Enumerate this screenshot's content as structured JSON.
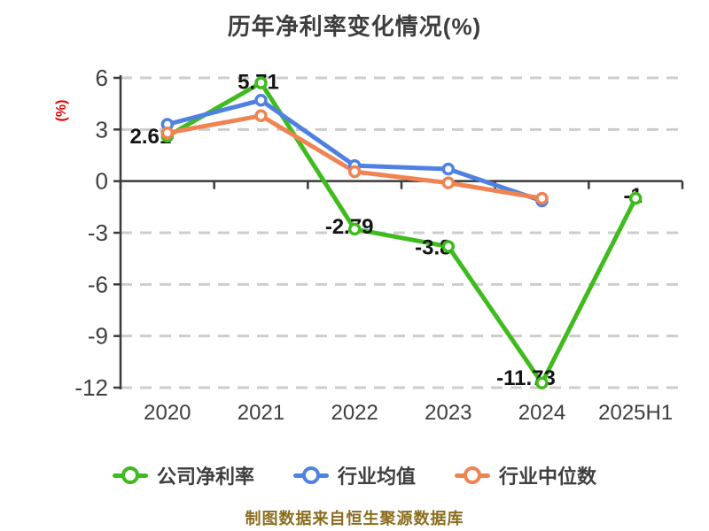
{
  "title": "历年净利率变化情况(%)",
  "y_axis_unit": "(%)",
  "footer": "制图数据来自恒生聚源数据库",
  "chart_data": {
    "type": "line",
    "title": "历年净利率变化情况(%)",
    "xlabel": "",
    "ylabel": "(%)",
    "categories": [
      "2020",
      "2021",
      "2022",
      "2023",
      "2024",
      "2025H1"
    ],
    "ylim": [
      -12,
      6
    ],
    "yticks": [
      6,
      3,
      0,
      -3,
      -6,
      -9,
      -12
    ],
    "grid": "horizontal dashed",
    "legend_position": "bottom",
    "colors": {
      "axis": "#3a3a3a",
      "gridline": "#cdcdcd",
      "tick_text": "#3f3f3f",
      "point_label_text": "#141414",
      "title_text": "#3d3d3d",
      "unit_label_text": "#e60000",
      "footer_text": "#8b6d1e",
      "marker_fill": "#ffffff"
    },
    "series": [
      {
        "name": "公司净利率",
        "key": "company-net-margin",
        "color": "#3fbb1e",
        "values": [
          2.61,
          5.71,
          -2.79,
          -3.8,
          -11.73,
          -1
        ],
        "point_labels": [
          {
            "text": "2.61",
            "dx": -19,
            "dy": 0
          },
          {
            "text": "5.71",
            "dx": -3,
            "dy": -1
          },
          {
            "text": "-2.79",
            "dx": -6,
            "dy": -3
          },
          {
            "text": "-3.8",
            "dx": -17,
            "dy": 1
          },
          {
            "text": "-11.73",
            "dx": -18,
            "dy": -6
          },
          {
            "text": "-1",
            "dx": -3,
            "dy": -3
          }
        ]
      },
      {
        "name": "行业均值",
        "key": "industry-mean",
        "color": "#4f81e3",
        "values": [
          3.3,
          4.7,
          0.9,
          0.7,
          -1.15,
          null
        ]
      },
      {
        "name": "行业中位数",
        "key": "industry-median",
        "color": "#f08352",
        "values": [
          2.8,
          3.8,
          0.55,
          -0.1,
          -1.0,
          null
        ]
      }
    ]
  }
}
